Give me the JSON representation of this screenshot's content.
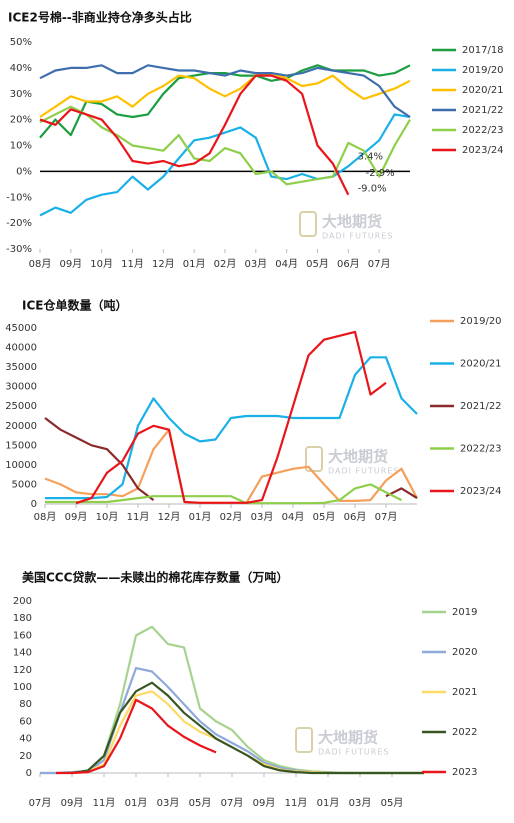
{
  "chart_data": [
    {
      "type": "line",
      "title": "ICE2号棉--非商业持仓净多头占比",
      "x": [
        0,
        0.5,
        1,
        1.5,
        2,
        2.5,
        3,
        3.5,
        4,
        4.5,
        5,
        5.5,
        6,
        6.5,
        7,
        7.5,
        8,
        8.5,
        9,
        9.5,
        10,
        10.5,
        11,
        11.5,
        12
      ],
      "xlim": [
        0,
        12
      ],
      "xticks": [
        {
          "value": 0,
          "label": "08月"
        },
        {
          "value": 1,
          "label": "09月"
        },
        {
          "value": 2,
          "label": "10月"
        },
        {
          "value": 3,
          "label": "11月"
        },
        {
          "value": 4,
          "label": "12月"
        },
        {
          "value": 5,
          "label": "01月"
        },
        {
          "value": 6,
          "label": "02月"
        },
        {
          "value": 7,
          "label": "03月"
        },
        {
          "value": 8,
          "label": "04月"
        },
        {
          "value": 9,
          "label": "05月"
        },
        {
          "value": 10,
          "label": "06月"
        },
        {
          "value": 11,
          "label": "07月"
        }
      ],
      "ylim": [
        -30,
        50
      ],
      "yticks": [
        {
          "value": -30,
          "label": "-30%"
        },
        {
          "value": -20,
          "label": "-20%"
        },
        {
          "value": -10,
          "label": "-10%"
        },
        {
          "value": 0,
          "label": "0%"
        },
        {
          "value": 10,
          "label": "10%"
        },
        {
          "value": 20,
          "label": "20%"
        },
        {
          "value": 30,
          "label": "30%"
        },
        {
          "value": 40,
          "label": "40%"
        },
        {
          "value": 50,
          "label": "50%"
        }
      ],
      "series": [
        {
          "name": "2017/18",
          "color": "#1a9e3f",
          "values": [
            13,
            20,
            14,
            27,
            26,
            22,
            21,
            22,
            30,
            36,
            37,
            38,
            38,
            37,
            37,
            35,
            36,
            39,
            41,
            39,
            39,
            39,
            37,
            38,
            41
          ]
        },
        {
          "name": "2019/20",
          "color": "#1ab0e8",
          "values": [
            -17,
            -14,
            -16,
            -11,
            -9,
            -8,
            -2,
            -7,
            -2,
            5,
            12,
            13,
            15,
            17,
            13,
            -2,
            -3,
            -1,
            -3,
            -2,
            2,
            7,
            12,
            22,
            21
          ]
        },
        {
          "name": "2020/21",
          "color": "#ffc000",
          "values": [
            21,
            25,
            29,
            27,
            27,
            29,
            25,
            30,
            33,
            37,
            36,
            32,
            29,
            32,
            37,
            38,
            36,
            33,
            34,
            37,
            32,
            28,
            30,
            32,
            35
          ]
        },
        {
          "name": "2021/22",
          "color": "#3e6eae",
          "values": [
            36,
            39,
            40,
            40,
            41,
            38,
            38,
            41,
            40,
            39,
            39,
            38,
            37,
            39,
            38,
            38,
            37,
            38,
            40,
            39,
            38,
            37,
            33,
            25,
            21
          ]
        },
        {
          "name": "2022/23",
          "color": "#8fce4a",
          "values": [
            19,
            22,
            25,
            22,
            17,
            14,
            10,
            9,
            8,
            14,
            5,
            4,
            9,
            7,
            -1,
            0,
            -5,
            -4,
            -3,
            -2,
            11,
            8,
            -2,
            10,
            20
          ]
        },
        {
          "name": "2023/24",
          "color": "#e8161a",
          "values": [
            20,
            18,
            24,
            22,
            20,
            13,
            4,
            3,
            4,
            2,
            3,
            7,
            18,
            30,
            37,
            37,
            35,
            30,
            10,
            3,
            -9,
            null,
            null,
            null,
            null
          ]
        }
      ],
      "annotations": [
        {
          "label": "3.4%",
          "value": 3.4
        },
        {
          "label": "-2.9%",
          "value": -2.9
        },
        {
          "label": "-9.0%",
          "value": -9
        }
      ],
      "watermark": {
        "title": "大地期货",
        "subtitle": "DADI FUTURES"
      }
    },
    {
      "type": "line",
      "title": "ICE仓单数量（吨）",
      "x": [
        0,
        0.5,
        1,
        1.5,
        2,
        2.5,
        3,
        3.5,
        4,
        4.5,
        5,
        5.5,
        6,
        6.5,
        7,
        7.5,
        8,
        8.5,
        9,
        9.5,
        10,
        10.5,
        11,
        11.5,
        12
      ],
      "xlim": [
        0,
        12
      ],
      "xticks": [
        {
          "value": 0,
          "label": "08月"
        },
        {
          "value": 1,
          "label": "09月"
        },
        {
          "value": 2,
          "label": "10月"
        },
        {
          "value": 3,
          "label": "11月"
        },
        {
          "value": 4,
          "label": "12月"
        },
        {
          "value": 5,
          "label": "01月"
        },
        {
          "value": 6,
          "label": "02月"
        },
        {
          "value": 7,
          "label": "03月"
        },
        {
          "value": 8,
          "label": "04月"
        },
        {
          "value": 9,
          "label": "05月"
        },
        {
          "value": 10,
          "label": "06月"
        },
        {
          "value": 11,
          "label": "07月"
        }
      ],
      "ylim": [
        0,
        45000
      ],
      "yticks": [
        0,
        5000,
        10000,
        15000,
        20000,
        25000,
        30000,
        35000,
        40000,
        45000
      ],
      "series": [
        {
          "name": "2019/20",
          "color": "#f5a05a",
          "values": [
            6500,
            5000,
            3000,
            2500,
            2500,
            2000,
            4000,
            14000,
            19000,
            500,
            300,
            300,
            300,
            300,
            7000,
            8000,
            9000,
            9500,
            5000,
            800,
            800,
            1000,
            6000,
            9000,
            1500
          ]
        },
        {
          "name": "2020/21",
          "color": "#1ab0e8",
          "values": [
            1500,
            1500,
            1500,
            1500,
            1800,
            5000,
            20000,
            27000,
            22000,
            18000,
            16000,
            16500,
            22000,
            22500,
            22500,
            22500,
            22000,
            22000,
            22000,
            22000,
            33000,
            37500,
            37500,
            27000,
            23000
          ]
        },
        {
          "name": "2021/22",
          "color": "#8b2a2a",
          "values": [
            22000,
            19000,
            17000,
            15000,
            14000,
            10000,
            4000,
            1000,
            null,
            null,
            null,
            null,
            null,
            null,
            null,
            null,
            null,
            null,
            null,
            null,
            null,
            null,
            2000,
            4000,
            1500
          ]
        },
        {
          "name": "2022/23",
          "color": "#8fce4a",
          "values": [
            500,
            500,
            500,
            500,
            500,
            1000,
            1500,
            2000,
            2000,
            2000,
            2000,
            2000,
            2000,
            200,
            200,
            200,
            200,
            200,
            300,
            1000,
            4000,
            5000,
            3000,
            1000,
            null
          ]
        },
        {
          "name": "2023/24",
          "color": "#e8161a",
          "values": [
            null,
            null,
            200,
            1500,
            8000,
            11000,
            18000,
            20000,
            19000,
            500,
            300,
            300,
            300,
            300,
            1000,
            12000,
            25000,
            38000,
            42000,
            43000,
            44000,
            28000,
            31000,
            null,
            null
          ]
        }
      ],
      "watermark": {
        "title": "大地期货",
        "subtitle": "DADI FUTURES"
      }
    },
    {
      "type": "line",
      "title": "美国CCC贷款——未赎出的棉花库存数量（万吨）",
      "x": [
        0,
        1,
        2,
        3,
        4,
        5,
        6,
        7,
        8,
        9,
        10,
        11,
        12,
        13,
        14,
        15,
        16,
        17,
        18,
        19,
        20,
        21,
        22,
        23,
        24
      ],
      "xlim": [
        0,
        24
      ],
      "xticks": [
        {
          "value": 0,
          "label": "07月"
        },
        {
          "value": 2,
          "label": "09月"
        },
        {
          "value": 4,
          "label": "11月"
        },
        {
          "value": 6,
          "label": "01月"
        },
        {
          "value": 8,
          "label": "03月"
        },
        {
          "value": 10,
          "label": "05月"
        },
        {
          "value": 12,
          "label": "07月"
        },
        {
          "value": 14,
          "label": "09月"
        },
        {
          "value": 16,
          "label": "11月"
        },
        {
          "value": 18,
          "label": "01月"
        },
        {
          "value": 20,
          "label": "03月"
        },
        {
          "value": 22,
          "label": "05月"
        }
      ],
      "ylim": [
        0,
        200
      ],
      "yticks": [
        0,
        20,
        40,
        60,
        80,
        100,
        120,
        140,
        160,
        180,
        200
      ],
      "series": [
        {
          "name": "2019",
          "color": "#a6d38f",
          "values": [
            0,
            0,
            1,
            2,
            20,
            80,
            160,
            170,
            150,
            146,
            75,
            60,
            50,
            30,
            15,
            8,
            4,
            2,
            1,
            0,
            0,
            0,
            0,
            0,
            0
          ]
        },
        {
          "name": "2020",
          "color": "#8ea9db",
          "values": [
            0,
            0,
            1,
            2,
            15,
            70,
            122,
            118,
            100,
            80,
            60,
            45,
            35,
            25,
            12,
            6,
            3,
            1,
            0,
            0,
            0,
            0,
            0,
            0,
            0
          ]
        },
        {
          "name": "2021",
          "color": "#ffd966",
          "values": [
            null,
            null,
            0,
            2,
            10,
            55,
            90,
            95,
            80,
            60,
            48,
            40,
            30,
            20,
            10,
            4,
            2,
            1,
            0,
            0,
            0,
            0,
            0,
            0,
            0
          ]
        },
        {
          "name": "2022",
          "color": "#375623",
          "values": [
            null,
            null,
            0,
            3,
            20,
            70,
            95,
            105,
            90,
            70,
            55,
            40,
            30,
            20,
            8,
            3,
            1,
            0,
            0,
            0,
            0,
            0,
            0,
            0,
            0
          ]
        },
        {
          "name": "2023",
          "color": "#e8161a",
          "values": [
            null,
            0,
            0,
            1,
            8,
            40,
            85,
            75,
            55,
            42,
            32,
            24,
            null,
            null,
            null,
            null,
            null,
            null,
            null,
            null,
            null,
            null,
            null,
            null,
            null
          ]
        }
      ],
      "watermark": {
        "title": "大地期货",
        "subtitle": "DADI FUTURES"
      }
    }
  ]
}
